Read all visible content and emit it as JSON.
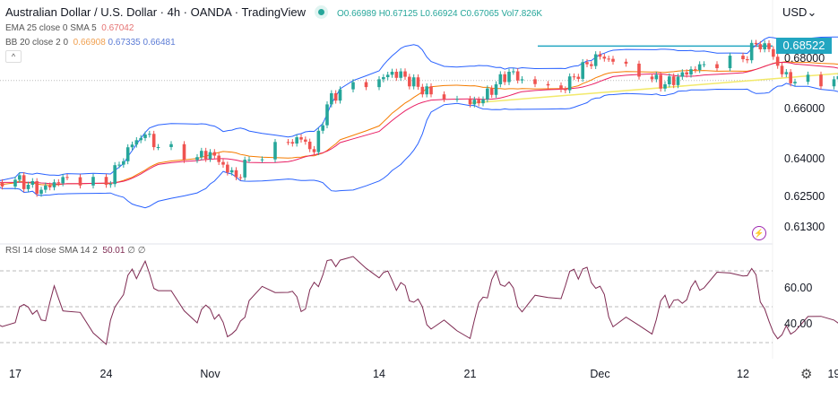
{
  "header": {
    "title": "Australian Dollar / U.S. Dollar · 4h · OANDA · TradingView",
    "ohlc": "O0.66989 H0.67125 L0.66924 C0.67065 Vol7.826K"
  },
  "indicators": {
    "ema": {
      "label": "EMA 25 close 0 SMA 5",
      "value": "0.67042"
    },
    "bb": {
      "label": "BB 20 close 2 0",
      "basis": "0.66908",
      "upper": "0.67335",
      "lower": "0.66481"
    },
    "rsi": {
      "label": "RSI 14 close SMA 14 2",
      "value": "50.01",
      "extra": "∅ ∅"
    }
  },
  "currency": "USD",
  "last_price": "0.68522",
  "colors": {
    "up": "#26a69a",
    "down": "#ef5350",
    "bb": "#2962ff",
    "ema": "#f57c00",
    "sma": "#e91e63",
    "rsi": "#7e2a52",
    "hline": "#22a6c1",
    "trend": "#f2e96b"
  },
  "chart_data": {
    "type": "candlestick",
    "y_ticks": [
      "0.68000",
      "0.66000",
      "0.64000",
      "0.62500",
      "0.61300"
    ],
    "ylim": [
      0.6125,
      0.6905
    ],
    "x_ticks": [
      "17",
      "24",
      "Nov",
      "14",
      "21",
      "Dec",
      "12",
      "19"
    ],
    "x_tick_dates": [
      "2022-10-17",
      "2022-10-24",
      "2022-11-01",
      "2022-11-14",
      "2022-11-21",
      "2022-12-01",
      "2022-12-12",
      "2022-12-19"
    ],
    "dates": [
      "2022-10-14",
      "2022-10-17",
      "2022-10-18",
      "2022-10-19",
      "2022-10-20",
      "2022-10-21",
      "2022-10-24",
      "2022-10-25",
      "2022-10-26",
      "2022-10-27",
      "2022-10-28",
      "2022-10-31",
      "2022-11-01",
      "2022-11-02",
      "2022-11-03",
      "2022-11-04",
      "2022-11-07",
      "2022-11-08",
      "2022-11-09",
      "2022-11-10",
      "2022-11-11",
      "2022-11-14",
      "2022-11-15",
      "2022-11-16",
      "2022-11-17",
      "2022-11-18",
      "2022-11-21",
      "2022-11-22",
      "2022-11-23",
      "2022-11-24",
      "2022-11-25",
      "2022-11-28",
      "2022-11-29",
      "2022-11-30",
      "2022-12-01",
      "2022-12-02",
      "2022-12-05",
      "2022-12-06",
      "2022-12-07",
      "2022-12-08",
      "2022-12-09",
      "2022-12-12",
      "2022-12-13",
      "2022-12-14",
      "2022-12-15",
      "2022-12-16",
      "2022-12-19",
      "2022-12-20",
      "2022-12-21",
      "2022-12-22",
      "2022-12-23"
    ],
    "close": [
      0.628,
      0.632,
      0.63,
      0.628,
      0.631,
      0.633,
      0.63,
      0.638,
      0.646,
      0.65,
      0.645,
      0.641,
      0.643,
      0.638,
      0.633,
      0.64,
      0.647,
      0.648,
      0.643,
      0.662,
      0.668,
      0.672,
      0.675,
      0.673,
      0.669,
      0.666,
      0.662,
      0.664,
      0.67,
      0.675,
      0.672,
      0.668,
      0.673,
      0.678,
      0.681,
      0.679,
      0.672,
      0.67,
      0.673,
      0.676,
      0.678,
      0.68,
      0.686,
      0.684,
      0.674,
      0.671,
      0.672,
      0.67,
      0.667,
      0.668,
      0.6706
    ],
    "support_level": 0.68522,
    "trendline": {
      "from": [
        "2022-11-21",
        0.6625
      ],
      "to": [
        "2022-12-27",
        0.6775
      ]
    },
    "rsi": {
      "ylim": [
        25,
        80
      ],
      "ticks": [
        "60.00",
        "40.00"
      ],
      "bands": [
        70,
        50,
        30
      ],
      "values": [
        36,
        45,
        52,
        40,
        58,
        48,
        33,
        55,
        68,
        72,
        60,
        45,
        50,
        38,
        34,
        55,
        62,
        48,
        60,
        73,
        78,
        70,
        65,
        58,
        52,
        40,
        36,
        55,
        66,
        62,
        50,
        58,
        70,
        68,
        60,
        42,
        38,
        55,
        50,
        60,
        64,
        70,
        66,
        38,
        34,
        40,
        45,
        38,
        44,
        48,
        50
      ]
    }
  }
}
